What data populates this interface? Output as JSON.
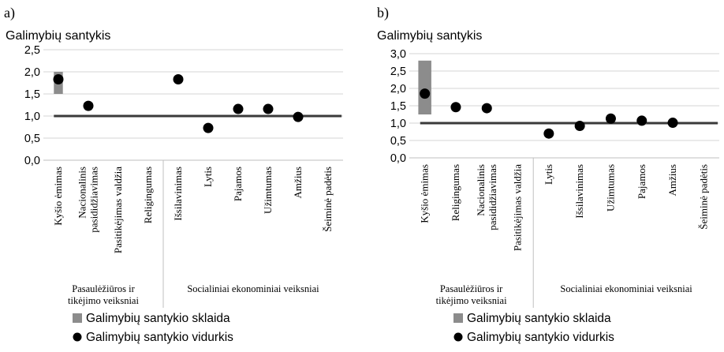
{
  "chart_data": [
    {
      "type": "scatter",
      "panel_label": "a)",
      "ylabel": "Galimybių santykis",
      "ylim": [
        0,
        2.5
      ],
      "yticks": [
        "0,0",
        "0,5",
        "1,0",
        "1,5",
        "2,0",
        "2,5"
      ],
      "reference_line": 1.0,
      "categories": [
        "Kyšio ėmimas",
        "Nacionalinis pasididžiavimas",
        "Pasitikėjimas valdžia",
        "Religingumas",
        "Išsilavinimas",
        "Lytis",
        "Pajamos",
        "Užimtumas",
        "Amžius",
        "Šeiminė padėtis"
      ],
      "category_lines": [
        [
          "Kyšio ėmimas"
        ],
        [
          "Nacionalinis",
          "pasididžiavimas"
        ],
        [
          "Pasitikėjimas valdžia"
        ],
        [
          "Religingumas"
        ],
        [
          "Išsilavinimas"
        ],
        [
          "Lytis"
        ],
        [
          "Pajamos"
        ],
        [
          "Užimtumas"
        ],
        [
          "Amžius"
        ],
        [
          "Šeiminė padėtis"
        ]
      ],
      "groups": [
        {
          "lines": [
            "Pasaulėžiūros ir",
            "tikėjimo veiksniai"
          ],
          "span": [
            0,
            3
          ]
        },
        {
          "lines": [
            "Socialiniai ekonominiai veiksniai"
          ],
          "span": [
            4,
            9
          ]
        }
      ],
      "series": [
        {
          "name": "Galimybių santykio sklaida",
          "kind": "range",
          "values": [
            [
              1.5,
              2.0
            ],
            [
              1.18,
              1.3
            ],
            null,
            null,
            null,
            null,
            null,
            null,
            null,
            null
          ]
        },
        {
          "name": "Galimybių santykio vidurkis",
          "kind": "point",
          "values": [
            1.83,
            1.23,
            null,
            null,
            1.83,
            0.73,
            1.16,
            1.16,
            0.98,
            null
          ]
        }
      ]
    },
    {
      "type": "scatter",
      "panel_label": "b)",
      "ylabel": "Galimybių santykis",
      "ylim": [
        0,
        3.0
      ],
      "yticks": [
        "0,0",
        "0,5",
        "1,0",
        "1,5",
        "2,0",
        "2,5",
        "3,0"
      ],
      "reference_line": 1.0,
      "categories": [
        "Kyšio ėmimas",
        "Religingumas",
        "Nacionalinis pasididžiavimas",
        "Pasitikėjimas valdžia",
        "Lytis",
        "Išsilavinimas",
        "Užimtumas",
        "Pajamos",
        "Amžius",
        "Šeiminė padėtis"
      ],
      "category_lines": [
        [
          "Kyšio ėmimas"
        ],
        [
          "Religingumas"
        ],
        [
          "Nacionalinis",
          "pasididžiavimas"
        ],
        [
          "Pasitikėjimas valdžia"
        ],
        [
          "Lytis"
        ],
        [
          "Išsilavinimas"
        ],
        [
          "Užimtumas"
        ],
        [
          "Pajamos"
        ],
        [
          "Amžius"
        ],
        [
          "Šeiminė padėtis"
        ]
      ],
      "groups": [
        {
          "lines": [
            "Pasaulėžiūros ir",
            "tikėjimo veiksniai"
          ],
          "span": [
            0,
            3
          ]
        },
        {
          "lines": [
            "Socialiniai ekonominiai veiksniai"
          ],
          "span": [
            4,
            9
          ]
        }
      ],
      "series": [
        {
          "name": "Galimybių santykio sklaida",
          "kind": "range",
          "values": [
            [
              1.25,
              2.8
            ],
            null,
            [
              1.36,
              1.5
            ],
            null,
            null,
            null,
            null,
            [
              0.98,
              1.12
            ],
            null,
            null
          ]
        },
        {
          "name": "Galimybių santykio vidurkis",
          "kind": "point",
          "values": [
            1.85,
            1.46,
            1.43,
            null,
            0.7,
            0.92,
            1.13,
            1.07,
            1.01,
            null
          ]
        }
      ]
    }
  ],
  "colors": {
    "range": "#8c8c8c",
    "point": "#000000",
    "reference": "#3a3a3a",
    "grid": "#d4d4d4",
    "axis": "#bfbfbf"
  },
  "legend": [
    {
      "label": "Galimybių santykio sklaida",
      "symbol": "square"
    },
    {
      "label": "Galimybių santykio vidurkis",
      "symbol": "circle"
    }
  ]
}
